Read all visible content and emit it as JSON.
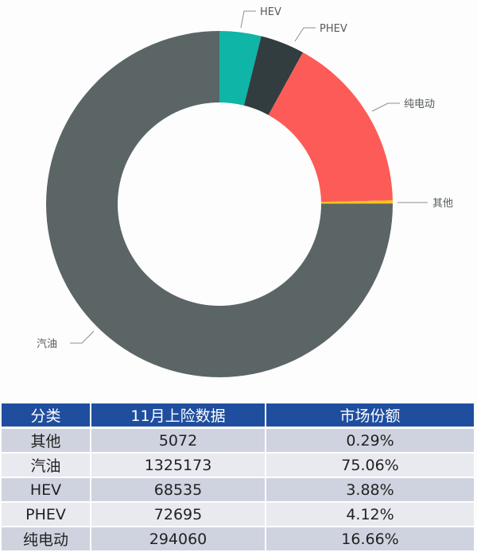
{
  "chart_data": {
    "type": "pie",
    "subtype": "donut",
    "title": "",
    "categories": [
      "HEV",
      "PHEV",
      "纯电动",
      "其他",
      "汽油"
    ],
    "values": [
      68535,
      72695,
      294060,
      5072,
      1325173
    ],
    "percentages": [
      3.88,
      4.12,
      16.66,
      0.29,
      75.06
    ],
    "colors": [
      "#0fb5a6",
      "#323d40",
      "#fd5b58",
      "#f5c518",
      "#5b6566"
    ],
    "start_angle_deg": 0,
    "direction": "clockwise",
    "legend": "leader-line labels",
    "center": [
      276,
      257
    ],
    "outer_radius": 218,
    "inner_radius": 128
  },
  "labels": {
    "hev": "HEV",
    "phev": "PHEV",
    "bev": "纯电动",
    "other": "其他",
    "gasoline": "汽油"
  },
  "table": {
    "headers": [
      "分类",
      "11月上险数据",
      "市场份额"
    ],
    "rows": [
      [
        "其他",
        "5072",
        "0.29%"
      ],
      [
        "汽油",
        "1325173",
        "75.06%"
      ],
      [
        "HEV",
        "68535",
        "3.88%"
      ],
      [
        "PHEV",
        "72695",
        "4.12%"
      ],
      [
        "纯电动",
        "294060",
        "16.66%"
      ]
    ],
    "header_color": "#1f4e9e"
  }
}
